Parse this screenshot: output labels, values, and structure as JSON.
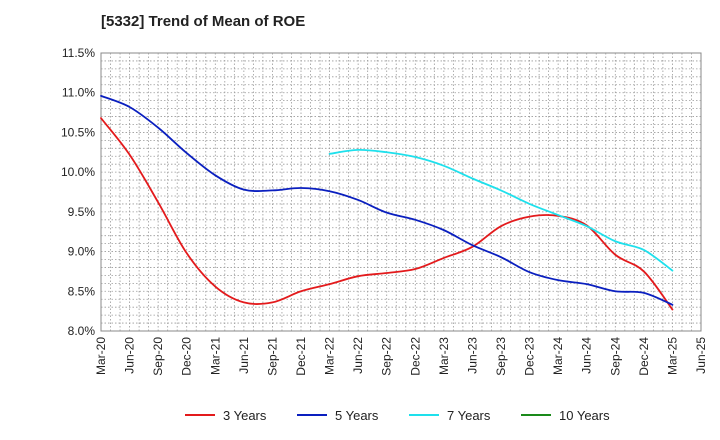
{
  "chart_data": {
    "type": "line",
    "title": "[5332]  Trend of Mean of ROE",
    "xlabel": "",
    "ylabel": "",
    "x_ticks": [
      "Mar-20",
      "Jun-20",
      "Sep-20",
      "Dec-20",
      "Mar-21",
      "Jun-21",
      "Sep-21",
      "Dec-21",
      "Mar-22",
      "Jun-22",
      "Sep-22",
      "Dec-22",
      "Mar-23",
      "Jun-23",
      "Sep-23",
      "Dec-23",
      "Mar-24",
      "Jun-24",
      "Sep-24",
      "Dec-24",
      "Mar-25",
      "Jun-25"
    ],
    "y_ticks": [
      "8.0%",
      "8.5%",
      "9.0%",
      "9.5%",
      "10.0%",
      "10.5%",
      "11.0%",
      "11.5%"
    ],
    "ylim": [
      8.0,
      11.5
    ],
    "grid": true,
    "legend_position": "bottom",
    "series": [
      {
        "name": "3 Years",
        "color": "#e31a1c",
        "values": [
          10.68,
          10.22,
          9.62,
          8.98,
          8.56,
          8.36,
          8.36,
          8.5,
          8.59,
          8.69,
          8.73,
          8.78,
          8.92,
          9.06,
          9.32,
          9.44,
          9.45,
          9.33,
          8.96,
          8.75,
          8.27
        ]
      },
      {
        "name": "5 Years",
        "color": "#0a1fbf",
        "values": [
          10.96,
          10.82,
          10.56,
          10.24,
          9.96,
          9.78,
          9.77,
          9.8,
          9.76,
          9.65,
          9.49,
          9.4,
          9.27,
          9.08,
          8.93,
          8.74,
          8.64,
          8.59,
          8.5,
          8.48,
          8.33
        ]
      },
      {
        "name": "7 Years",
        "color": "#1ee0ec",
        "values": [
          null,
          null,
          null,
          null,
          null,
          null,
          null,
          null,
          10.23,
          10.28,
          10.25,
          10.19,
          10.08,
          9.92,
          9.77,
          9.6,
          9.46,
          9.32,
          9.13,
          9.02,
          8.76
        ]
      },
      {
        "name": "10 Years",
        "color": "#1a8a1a",
        "values": [
          null,
          null,
          null,
          null,
          null,
          null,
          null,
          null,
          null,
          null,
          null,
          null,
          null,
          null,
          null,
          null,
          null,
          null,
          null,
          null,
          null
        ]
      }
    ]
  }
}
